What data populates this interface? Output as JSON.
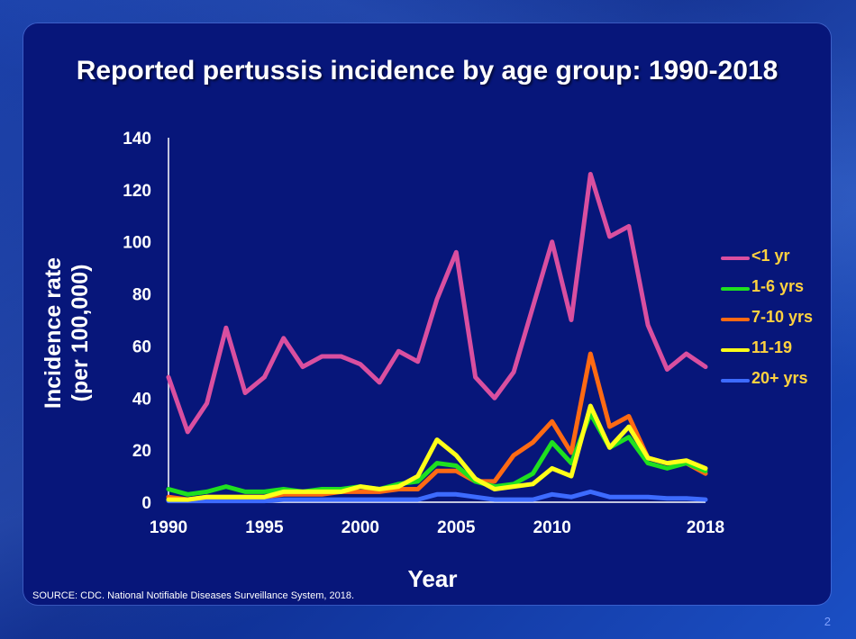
{
  "slide": {
    "title": "Reported pertussis incidence by age group: 1990-2018",
    "source": "SOURCE: CDC. National Notifiable Diseases Surveillance System, 2018.",
    "page_number": "2"
  },
  "chart_data": {
    "type": "line",
    "title": "Reported pertussis incidence by age group: 1990-2018",
    "xlabel": "Year",
    "ylabel": "Incidence rate (per 100,000)",
    "ylabel_lines": [
      "Incidence rate",
      "(per 100,000)"
    ],
    "xlim": [
      1990,
      2018
    ],
    "ylim": [
      0,
      140
    ],
    "yticks": [
      0,
      20,
      40,
      60,
      80,
      100,
      120,
      140
    ],
    "xticks": [
      1990,
      1995,
      2000,
      2005,
      2010,
      2018
    ],
    "grid": false,
    "legend": "right",
    "x": [
      1990,
      1991,
      1992,
      1993,
      1994,
      1995,
      1996,
      1997,
      1998,
      1999,
      2000,
      2001,
      2002,
      2003,
      2004,
      2005,
      2006,
      2007,
      2008,
      2009,
      2010,
      2011,
      2012,
      2013,
      2014,
      2015,
      2016,
      2017,
      2018
    ],
    "series": [
      {
        "name": "<1 yr",
        "color": "#d94fa0",
        "values": [
          48,
          27,
          38,
          67,
          42,
          48,
          63,
          52,
          56,
          56,
          53,
          46,
          58,
          54,
          78,
          96,
          48,
          40,
          50,
          75,
          100,
          70,
          126,
          102,
          106,
          68,
          51,
          57,
          52
        ]
      },
      {
        "name": "1-6 yrs",
        "color": "#1fe01f",
        "values": [
          5,
          3,
          4,
          6,
          4,
          4,
          5,
          4,
          5,
          5,
          6,
          5,
          7,
          8,
          15,
          14,
          8,
          6,
          7,
          11,
          23,
          15,
          34,
          21,
          25,
          15,
          13,
          15,
          12
        ]
      },
      {
        "name": "7-10 yrs",
        "color": "#ff6a13",
        "values": [
          2,
          1,
          2,
          2,
          2,
          2,
          3,
          3,
          3,
          4,
          4,
          4,
          5,
          5,
          12,
          12,
          8,
          8,
          18,
          23,
          31,
          19,
          57,
          29,
          33,
          17,
          15,
          15,
          11
        ]
      },
      {
        "name": "11-19",
        "color": "#ffff19",
        "values": [
          1,
          1,
          2,
          2,
          2,
          2,
          4,
          4,
          4,
          4,
          6,
          5,
          6,
          10,
          24,
          18,
          9,
          5,
          6,
          7,
          13,
          10,
          37,
          21,
          29,
          17,
          15,
          16,
          13
        ]
      },
      {
        "name": "20+ yrs",
        "color": "#3d6bff",
        "values": [
          0.5,
          0.5,
          0.5,
          0.5,
          0.5,
          0.5,
          1,
          1,
          1,
          1,
          1,
          1,
          1,
          1,
          3,
          3,
          2,
          1,
          1,
          1,
          3,
          2,
          4,
          2,
          2,
          2,
          1.5,
          1.5,
          1
        ]
      }
    ]
  }
}
